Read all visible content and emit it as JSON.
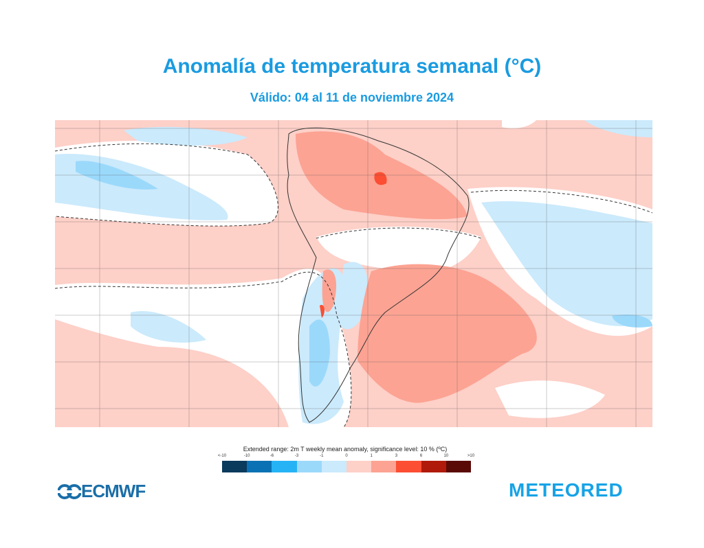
{
  "title": "Anomalía de temperatura semanal  (°C)",
  "subtitle": "Válido: 04 al 11 de noviembre 2024",
  "legend": {
    "title": "Extended range: 2m T weekly mean anomaly, significance level: 10 % (ºC)",
    "ticks": [
      "<-10",
      "-10",
      "-6",
      "-3",
      "-1",
      "0",
      "1",
      "3",
      "6",
      "10",
      ">10"
    ],
    "colors": [
      "#0a3a5c",
      "#0a72b4",
      "#26b3f5",
      "#9bd9fb",
      "#cbeafc",
      "#fdd0c8",
      "#fca393",
      "#fc4e32",
      "#b01a0a",
      "#5a0a06"
    ]
  },
  "logos": {
    "left": "ECMWF",
    "right": "METEORED"
  },
  "map": {
    "region": "South America",
    "colors": {
      "background": "#fdd0c8",
      "neutral": "#ffffff",
      "cool": "#cbeafc",
      "cooler": "#9bd9fb",
      "warm": "#fca393",
      "hot": "#fc4e32"
    }
  }
}
